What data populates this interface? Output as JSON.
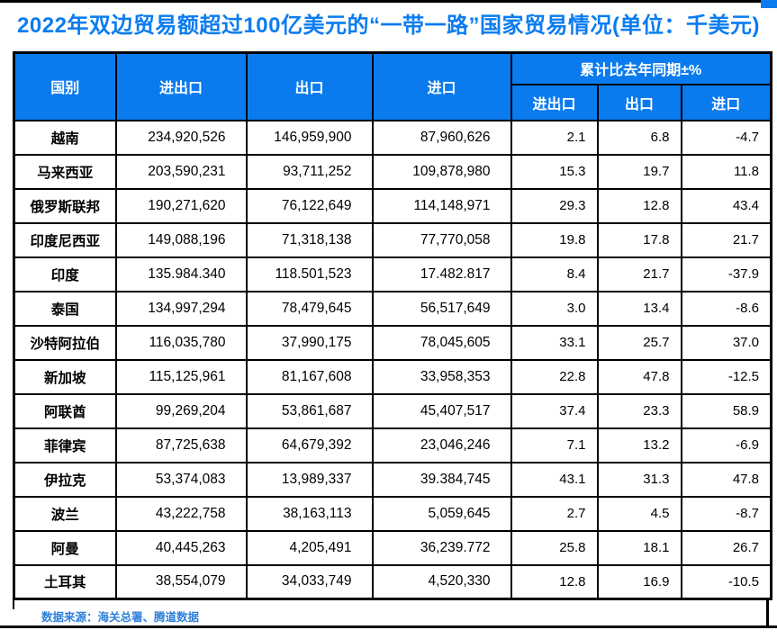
{
  "title": "2022年双边贸易额超过100亿美元的“一带一路”国家贸易情况(单位：千美元)",
  "footer": {
    "source": "数据来源：海关总署、腾道数据"
  },
  "colors": {
    "accent_blue": "#0a7bee",
    "title_blue": "#0a7cf0",
    "footer_blue": "#2e80da",
    "border": "#000000",
    "header_text": "#ffffff",
    "body_text": "#000000",
    "background": "#ffffff"
  },
  "table": {
    "headers": {
      "country": "国别",
      "total": "进出口",
      "export": "出口",
      "import": "进口",
      "yoy_group": "累计比去年同期±%",
      "yoy_total": "进出口",
      "yoy_export": "出口",
      "yoy_import": "进口"
    },
    "rows": [
      {
        "country": "越南",
        "total": "234,920,526",
        "export": "146,959,900",
        "import": "87,960,626",
        "yoy_total": "2.1",
        "yoy_export": "6.8",
        "yoy_import": "-4.7"
      },
      {
        "country": "马来西亚",
        "total": "203,590,231",
        "export": "93,711,252",
        "import": "109,878,980",
        "yoy_total": "15.3",
        "yoy_export": "19.7",
        "yoy_import": "11.8"
      },
      {
        "country": "俄罗斯联邦",
        "total": "190,271,620",
        "export": "76,122,649",
        "import": "114,148,971",
        "yoy_total": "29.3",
        "yoy_export": "12.8",
        "yoy_import": "43.4"
      },
      {
        "country": "印度尼西亚",
        "total": "149,088,196",
        "export": "71,318,138",
        "import": "77,770,058",
        "yoy_total": "19.8",
        "yoy_export": "17.8",
        "yoy_import": "21.7"
      },
      {
        "country": "印度",
        "total": "135.984.340",
        "export": "118.501,523",
        "import": "17.482.817",
        "yoy_total": "8.4",
        "yoy_export": "21.7",
        "yoy_import": "-37.9"
      },
      {
        "country": "泰国",
        "total": "134,997,294",
        "export": "78,479,645",
        "import": "56,517,649",
        "yoy_total": "3.0",
        "yoy_export": "13.4",
        "yoy_import": "-8.6"
      },
      {
        "country": "沙特阿拉伯",
        "total": "116,035,780",
        "export": "37,990,175",
        "import": "78,045,605",
        "yoy_total": "33.1",
        "yoy_export": "25.7",
        "yoy_import": "37.0"
      },
      {
        "country": "新加坡",
        "total": "115,125,961",
        "export": "81,167,608",
        "import": "33,958,353",
        "yoy_total": "22.8",
        "yoy_export": "47.8",
        "yoy_import": "-12.5"
      },
      {
        "country": "阿联酋",
        "total": "99,269,204",
        "export": "53,861,687",
        "import": "45,407,517",
        "yoy_total": "37.4",
        "yoy_export": "23.3",
        "yoy_import": "58.9"
      },
      {
        "country": "菲律宾",
        "total": "87,725,638",
        "export": "64,679,392",
        "import": "23,046,246",
        "yoy_total": "7.1",
        "yoy_export": "13.2",
        "yoy_import": "-6.9"
      },
      {
        "country": "伊拉克",
        "total": "53,374,083",
        "export": "13,989,337",
        "import": "39.384,745",
        "yoy_total": "43.1",
        "yoy_export": "31.3",
        "yoy_import": "47.8"
      },
      {
        "country": "波兰",
        "total": "43,222,758",
        "export": "38,163,113",
        "import": "5,059,645",
        "yoy_total": "2.7",
        "yoy_export": "4.5",
        "yoy_import": "-8.7"
      },
      {
        "country": "阿曼",
        "total": "40,445,263",
        "export": "4,205,491",
        "import": "36,239.772",
        "yoy_total": "25.8",
        "yoy_export": "18.1",
        "yoy_import": "26.7"
      },
      {
        "country": "土耳其",
        "total": "38,554,079",
        "export": "34,033,749",
        "import": "4,520,330",
        "yoy_total": "12.8",
        "yoy_export": "16.9",
        "yoy_import": "-10.5"
      }
    ]
  },
  "chart_data": {
    "type": "table",
    "title": "2022年双边贸易额超过100亿美元的“一带一路”国家贸易情况",
    "unit": "千美元",
    "source": "数据来源：海关总署、腾道数据",
    "columns": [
      "国别",
      "进出口",
      "出口",
      "进口",
      "累计比去年同期±% 进出口",
      "累计比去年同期±% 出口",
      "累计比去年同期±% 进口"
    ],
    "rows": [
      [
        "越南",
        "234,920,526",
        "146,959,900",
        "87,960,626",
        "2.1",
        "6.8",
        "-4.7"
      ],
      [
        "马来西亚",
        "203,590,231",
        "93,711,252",
        "109,878,980",
        "15.3",
        "19.7",
        "11.8"
      ],
      [
        "俄罗斯联邦",
        "190,271,620",
        "76,122,649",
        "114,148,971",
        "29.3",
        "12.8",
        "43.4"
      ],
      [
        "印度尼西亚",
        "149,088,196",
        "71,318,138",
        "77,770,058",
        "19.8",
        "17.8",
        "21.7"
      ],
      [
        "印度",
        "135.984.340",
        "118.501,523",
        "17.482.817",
        "8.4",
        "21.7",
        "-37.9"
      ],
      [
        "泰国",
        "134,997,294",
        "78,479,645",
        "56,517,649",
        "3.0",
        "13.4",
        "-8.6"
      ],
      [
        "沙特阿拉伯",
        "116,035,780",
        "37,990,175",
        "78,045,605",
        "33.1",
        "25.7",
        "37.0"
      ],
      [
        "新加坡",
        "115,125,961",
        "81,167,608",
        "33,958,353",
        "22.8",
        "47.8",
        "-12.5"
      ],
      [
        "阿联酋",
        "99,269,204",
        "53,861,687",
        "45,407,517",
        "37.4",
        "23.3",
        "58.9"
      ],
      [
        "菲律宾",
        "87,725,638",
        "64,679,392",
        "23,046,246",
        "7.1",
        "13.2",
        "-6.9"
      ],
      [
        "伊拉克",
        "53,374,083",
        "13,989,337",
        "39.384,745",
        "43.1",
        "31.3",
        "47.8"
      ],
      [
        "波兰",
        "43,222,758",
        "38,163,113",
        "5,059,645",
        "2.7",
        "4.5",
        "-8.7"
      ],
      [
        "阿曼",
        "40,445,263",
        "4,205,491",
        "36,239.772",
        "25.8",
        "18.1",
        "26.7"
      ],
      [
        "土耳其",
        "38,554,079",
        "34,033,749",
        "4,520,330",
        "12.8",
        "16.9",
        "-10.5"
      ]
    ]
  }
}
